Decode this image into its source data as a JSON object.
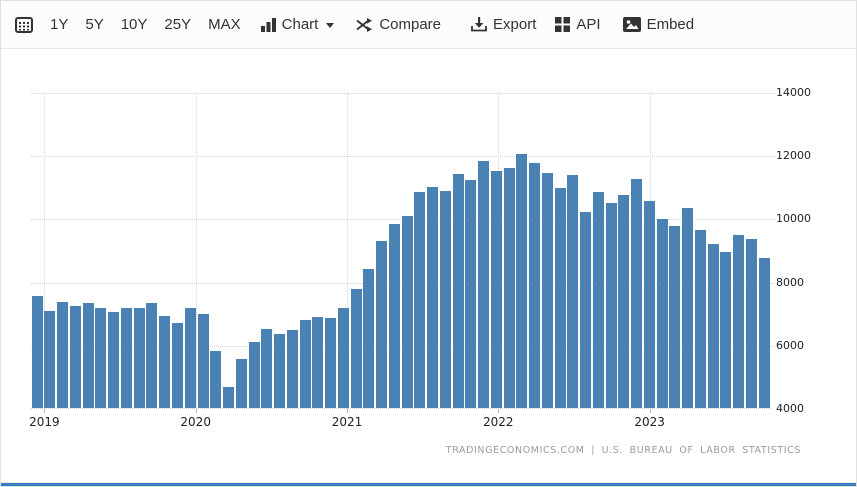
{
  "toolbar": {
    "range_buttons": [
      {
        "label": "1Y"
      },
      {
        "label": "5Y"
      },
      {
        "label": "10Y"
      },
      {
        "label": "25Y"
      },
      {
        "label": "MAX"
      }
    ],
    "chart_label": "Chart",
    "compare_label": "Compare",
    "export_label": "Export",
    "api_label": "API",
    "embed_label": "Embed"
  },
  "attribution": "TRADINGECONOMICS.COM | U.S. BUREAU OF LABOR STATISTICS",
  "colors": {
    "bar": "#4a82b4",
    "grid": "#d4d4d4",
    "axis_text": "#222222",
    "attribution_text": "#9b9b9b",
    "bottom_accent": "#3e7cc1"
  },
  "chart_data": {
    "type": "bar",
    "frequency": "monthly",
    "x_start": "2019-01",
    "x_end": "2023-10",
    "values": [
      7540,
      7070,
      7340,
      7220,
      7310,
      7150,
      7050,
      7180,
      7170,
      7310,
      6920,
      6690,
      7150,
      6980,
      5790,
      4680,
      5550,
      6100,
      6500,
      6330,
      6470,
      6780,
      6870,
      6840,
      7170,
      7760,
      8390,
      9270,
      9830,
      10070,
      10850,
      10980,
      10860,
      11390,
      11210,
      11810,
      11510,
      11600,
      12040,
      11760,
      11430,
      10960,
      11380,
      10200,
      10850,
      10490,
      10750,
      11240,
      10540,
      9990,
      9750,
      10320,
      9640,
      9180,
      8940,
      9490,
      9350,
      8750
    ],
    "year_ticks": [
      {
        "label": "2019",
        "month_index": 0
      },
      {
        "label": "2020",
        "month_index": 12
      },
      {
        "label": "2021",
        "month_index": 24
      },
      {
        "label": "2022",
        "month_index": 36
      },
      {
        "label": "2023",
        "month_index": 48
      }
    ],
    "ylim": [
      4000,
      14000
    ],
    "yticks": [
      4000,
      6000,
      8000,
      10000,
      12000,
      14000
    ],
    "grid": "dotted",
    "legend": "none"
  }
}
